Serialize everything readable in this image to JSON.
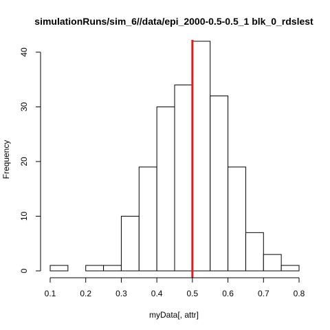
{
  "chart_data": {
    "type": "bar",
    "title": "simulationRuns/sim_6//data/epi_2000-0.5-0.5_1 blk_0_rdslest",
    "xlabel": "myData[, attr]",
    "ylabel": "Frequency",
    "bin_edges": [
      0.1,
      0.15,
      0.2,
      0.25,
      0.3,
      0.35,
      0.4,
      0.45,
      0.5,
      0.55,
      0.6,
      0.65,
      0.7,
      0.75,
      0.8
    ],
    "values": [
      1,
      0,
      1,
      1,
      10,
      19,
      30,
      34,
      42,
      32,
      19,
      7,
      3,
      1
    ],
    "xlim": [
      0.1,
      0.8
    ],
    "ylim": [
      0,
      42
    ],
    "xticks": [
      0.1,
      0.2,
      0.3,
      0.4,
      0.5,
      0.6,
      0.7,
      0.8
    ],
    "yticks": [
      0,
      10,
      20,
      30,
      40
    ],
    "reference_line": {
      "x": 0.5,
      "color": "#e31a1c"
    },
    "grid": false
  }
}
